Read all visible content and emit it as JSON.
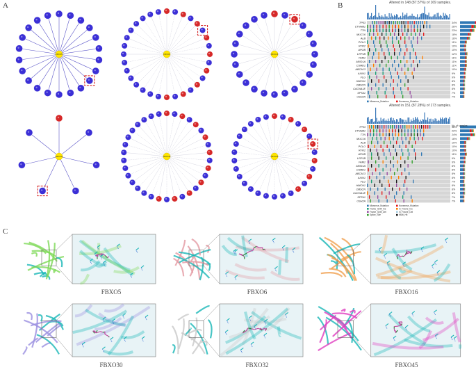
{
  "panels": {
    "a_letter": "A",
    "b_letter": "B",
    "c_letter": "C"
  },
  "networks": [
    {
      "hub": "FBXO5",
      "hub_color": "#ffe600",
      "node_color": "#3b2fd6",
      "count": 22,
      "red_nodes": 0,
      "highlight": true
    },
    {
      "hub": "FBXO6",
      "hub_color": "#ffe600",
      "node_color": "#3b2fd6",
      "count": 32,
      "red_nodes": 9,
      "highlight": true
    },
    {
      "hub": "FBXO16",
      "hub_color": "#ffe600",
      "node_color": "#3b2fd6",
      "count": 24,
      "red_nodes": 2,
      "highlight": true
    },
    {
      "hub": "FBXO30",
      "hub_color": "#ffe600",
      "node_color": "#3b2fd6",
      "count": 7,
      "red_nodes": 1,
      "highlight": true
    },
    {
      "hub": "FBXO32",
      "hub_color": "#ffe600",
      "node_color": "#3b2fd6",
      "count": 34,
      "red_nodes": 10,
      "highlight": false
    },
    {
      "hub": "FBXO45",
      "hub_color": "#ffe600",
      "node_color": "#3b2fd6",
      "count": 30,
      "red_nodes": 7,
      "highlight": true
    }
  ],
  "oncoprint_top": {
    "title": "Altered in 148 (87.57%) of 169 samples.",
    "genes": [
      "TP53",
      "CTNNB1",
      "TTN",
      "MUC16",
      "ALB",
      "PCLO",
      "RYR2",
      "APOB",
      "LRP1B",
      "FAM1",
      "ARID1A",
      "CSMD1",
      "ABCA13",
      "AXIN1",
      "FLG",
      "HMCN1",
      "OBSCN",
      "CACNA1E",
      "SPTA1",
      "USH2A"
    ],
    "pcts": [
      "34%",
      "26%",
      "23%",
      "18%",
      "16%",
      "11%",
      "10%",
      "10%",
      "12%",
      "11%",
      "11%",
      "11%",
      "10%",
      "9%",
      "9%",
      "8%",
      "8%",
      "8%",
      "7%",
      "7%"
    ]
  },
  "oncoprint_bottom": {
    "title": "Altered in 151 (87.28%) of 173 samples.",
    "genes": [
      "TP53",
      "CTNNB1",
      "TTN",
      "MUC16",
      "ALB",
      "PCLO",
      "RYR2",
      "APOB",
      "LRP1B",
      "FAM1",
      "ARID1A",
      "CSMD1",
      "ABCA13",
      "AXIN1",
      "FLG",
      "HMCN1",
      "OBSCN",
      "CACNA1E",
      "SPTA1",
      "USH2A"
    ],
    "pcts": [
      "38%",
      "22%",
      "24%",
      "16%",
      "10%",
      "10%",
      "10%",
      "11%",
      "9%",
      "9%",
      "8%",
      "8%",
      "8%",
      "8%",
      "7%",
      "8%",
      "8%",
      "8%",
      "7%",
      "7%"
    ]
  },
  "legend": {
    "items": [
      "Missense_Mutation",
      "Nonsense_Mutation",
      "Frame_Shift_Ins",
      "In_Frame_Ins",
      "Frame_Shift_Del",
      "In_Frame_Del",
      "Splice_Site",
      "Multi_Hit"
    ],
    "legend_colors": [
      "#2f78b4",
      "#e31a1c",
      "#1b9e77",
      "#ff7f00",
      "#984ea3",
      "#a6cee3",
      "#33a02c",
      "#1a1a1a"
    ],
    "bar_label": "No. of samples"
  },
  "structures": [
    {
      "label": "FBXO5",
      "protein_color": "#7ed957",
      "ligand_color": "#19b6b6"
    },
    {
      "label": "FBXO6",
      "protein_color": "#e39aa3",
      "ligand_color": "#19b6b6"
    },
    {
      "label": "FBXO16",
      "protein_color": "#f0a050",
      "ligand_color": "#19b6b6"
    },
    {
      "label": "FBXO30",
      "protein_color": "#9a8fe0",
      "ligand_color": "#19b6b6"
    },
    {
      "label": "FBXO32",
      "protein_color": "#c9c9c9",
      "ligand_color": "#19b6b6"
    },
    {
      "label": "FBXO45",
      "protein_color": "#e040c0",
      "ligand_color": "#19b6b6"
    }
  ]
}
